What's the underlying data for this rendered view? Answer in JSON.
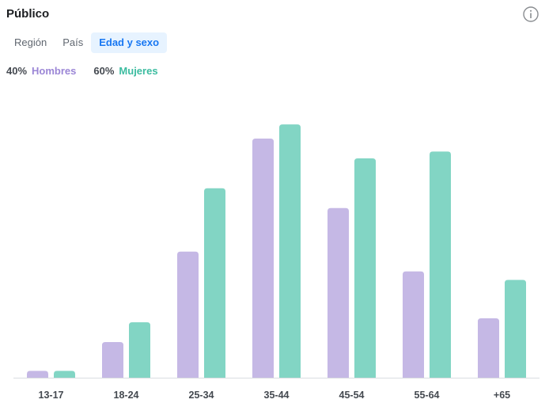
{
  "header": {
    "title": "Público",
    "info_icon": "info-icon"
  },
  "tabs": [
    {
      "label": "Región",
      "active": false
    },
    {
      "label": "País",
      "active": false
    },
    {
      "label": "Edad y sexo",
      "active": true
    }
  ],
  "legend": [
    {
      "percent": "40%",
      "label": "Hombres",
      "color": "#9b86d6"
    },
    {
      "percent": "60%",
      "label": "Mujeres",
      "color": "#3cbca0"
    }
  ],
  "chart_data": {
    "type": "bar",
    "categories": [
      "13-17",
      "18-24",
      "25-34",
      "35-44",
      "45-54",
      "55-64",
      "+65"
    ],
    "series": [
      {
        "name": "Hombres",
        "color": "#c5b8e5",
        "values": [
          1.2,
          6.3,
          22.3,
          42.3,
          30.0,
          18.8,
          10.5
        ]
      },
      {
        "name": "Mujeres",
        "color": "#82d5c4",
        "values": [
          1.2,
          9.8,
          33.5,
          44.8,
          38.8,
          40.0,
          17.3
        ]
      }
    ],
    "ylim": [
      0,
      50
    ],
    "grid": false
  }
}
